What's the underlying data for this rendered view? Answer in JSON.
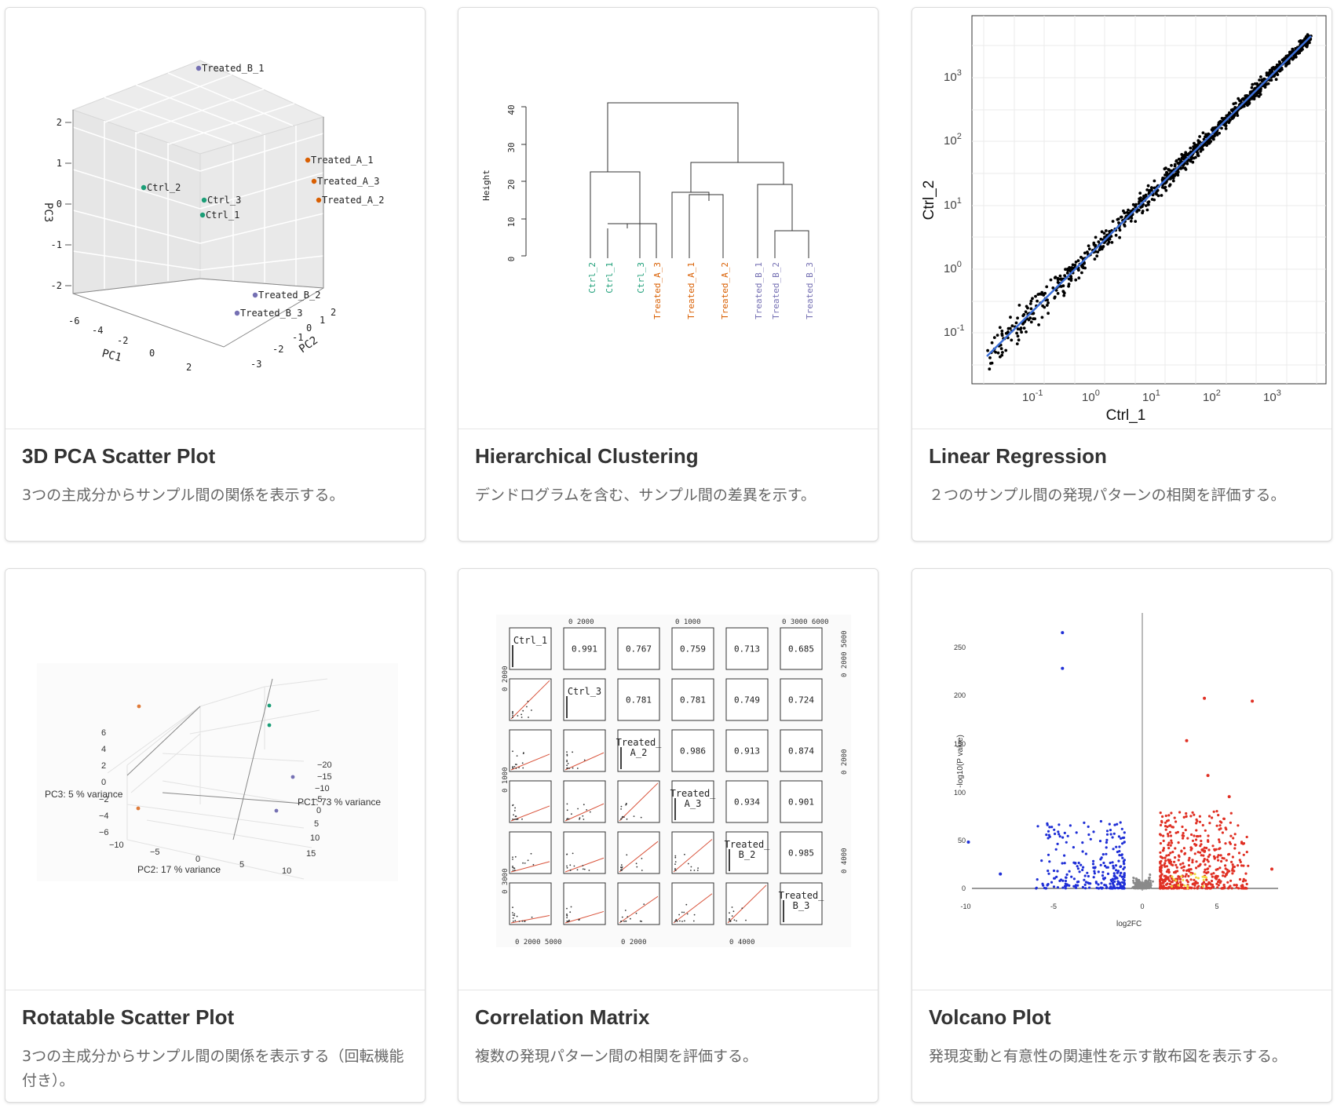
{
  "cards": [
    {
      "title": "3D PCA Scatter Plot",
      "desc": "3つの主成分からサンプル間の関係を表示する。",
      "chart": {
        "type": "scatter",
        "axes": [
          "PC1",
          "PC2",
          "PC3"
        ],
        "pc3_ticks": [
          "2",
          "1",
          "0",
          "-1",
          "-2"
        ],
        "pc1_ticks": [
          "-6",
          "-4",
          "-2",
          "0",
          "2"
        ],
        "pc2_ticks": [
          "2",
          "1",
          "0",
          "-1",
          "-2",
          "-3"
        ],
        "points": [
          {
            "label": "Treated_B_1",
            "group": "B"
          },
          {
            "label": "Treated_A_1",
            "group": "A"
          },
          {
            "label": "Treated_A_3",
            "group": "A"
          },
          {
            "label": "Treated_A_2",
            "group": "A"
          },
          {
            "label": "Ctrl_2",
            "group": "Ctrl"
          },
          {
            "label": "Ctrl_3",
            "group": "Ctrl"
          },
          {
            "label": "Ctrl_1",
            "group": "Ctrl"
          },
          {
            "label": "Treated_B_2",
            "group": "B"
          },
          {
            "label": "Treated_B_3",
            "group": "B"
          }
        ]
      }
    },
    {
      "title": "Hierarchical Clustering",
      "desc": "デンドログラムを含む、サンプル間の差異を示す。",
      "chart": {
        "type": "dendrogram",
        "ylabel": "Height",
        "yticks": [
          "0",
          "10",
          "20",
          "30",
          "40"
        ],
        "leaves": [
          "Ctrl_2",
          "Ctrl_1",
          "Ctrl_3",
          "Treated_A_3",
          "Treated_A_1",
          "Treated_A_2",
          "Treated_B_1",
          "Treated_B_2",
          "Treated_B_3"
        ],
        "merge_heights": [
          9,
          23,
          12.5,
          17,
          10.5,
          19,
          24.5,
          41
        ]
      }
    },
    {
      "title": "Linear Regression",
      "desc": "２つのサンプル間の発現パターンの相関を評価する。",
      "chart": {
        "type": "scatter",
        "xlabel": "Ctrl_1",
        "ylabel": "Ctrl_2",
        "scale": "log10",
        "x_ticks": [
          "10-1",
          "100",
          "101",
          "102",
          "103"
        ],
        "y_ticks": [
          "10-1",
          "100",
          "101",
          "102",
          "103"
        ],
        "fit_line": "blue"
      }
    },
    {
      "title": "Rotatable Scatter Plot",
      "desc": "3つの主成分からサンプル間の関係を表示する（回転機能付き）。",
      "chart": {
        "type": "scatter",
        "axis_labels": [
          "PC3:  5 % variance",
          "PC1:  73 % variance",
          "PC2:  17 % variance"
        ],
        "pc3_ticks": [
          "6",
          "4",
          "2",
          "0",
          "−2",
          "−4",
          "−6"
        ],
        "pc1_ticks": [
          "−20",
          "−15",
          "−10",
          "−5",
          "0",
          "5",
          "10",
          "15"
        ],
        "pc2_ticks": [
          "−10",
          "−5",
          "0",
          "5",
          "10"
        ]
      }
    },
    {
      "title": "Correlation Matrix",
      "desc": "複数の発現パターン間の相関を評価する。",
      "chart": {
        "type": "table",
        "samples": [
          "Ctrl_1",
          "Ctrl_3",
          "Treated_\nA_2",
          "Treated_\nA_3",
          "Treated_\nB_2",
          "Treated_\nB_3"
        ],
        "correlations": [
          [
            null,
            0.991,
            0.767,
            0.759,
            0.713,
            0.685
          ],
          [
            null,
            null,
            0.781,
            0.781,
            0.749,
            0.724
          ],
          [
            null,
            null,
            null,
            0.986,
            0.913,
            0.874
          ],
          [
            null,
            null,
            null,
            null,
            0.934,
            0.901
          ],
          [
            null,
            null,
            null,
            null,
            null,
            0.985
          ]
        ],
        "top_ticks": [
          "0  2000",
          "0  1000",
          "0   3000  6000"
        ],
        "right_ticks": [
          "0  2000  5000",
          "0  2000",
          "0  4000"
        ],
        "left_ticks": [
          "0  2000",
          "0  1000",
          "0  3000"
        ],
        "bottom_ticks": [
          "0  2000  5000",
          "0  2000",
          "0  4000"
        ]
      }
    },
    {
      "title": "Volcano Plot",
      "desc": "発現変動と有意性の関連性を示す散布図を表示する。",
      "chart": {
        "type": "scatter",
        "xlabel": "log2FC",
        "ylabel": "-log10(P value)",
        "xticks": [
          "-10",
          "-5",
          "0",
          "5"
        ],
        "yticks": [
          "0",
          "50",
          "100",
          "150",
          "200",
          "250"
        ]
      }
    }
  ]
}
